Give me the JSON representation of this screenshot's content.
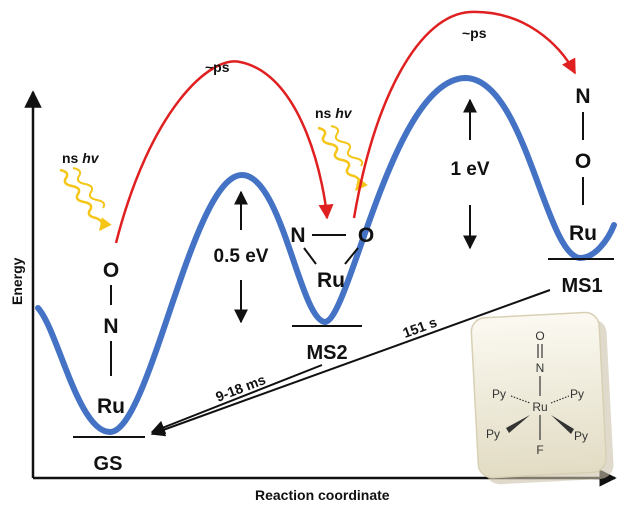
{
  "axes": {
    "y_label": "Energy",
    "x_label": "Reaction coordinate"
  },
  "states": {
    "gs": "GS",
    "ms2": "MS2",
    "ms1": "MS1"
  },
  "gs_structure": {
    "top": "O",
    "middle": "N",
    "bottom": "Ru"
  },
  "ms2_structure": {
    "left": "N",
    "right": "O",
    "bottom": "Ru"
  },
  "ms1_structure": {
    "top": "N",
    "middle": "O",
    "bottom": "Ru"
  },
  "excitation": {
    "prefix": "ns ",
    "symbol": "hv"
  },
  "timescales": {
    "fast": "~ps",
    "ms2_decay": "9-18 ms",
    "ms1_decay": "151 s"
  },
  "barriers": {
    "ms2_barrier": "0.5 eV",
    "ms1_barrier": "1 eV"
  },
  "molecule": {
    "o": "O",
    "n": "N",
    "ru": "Ru",
    "f": "F",
    "py": "Py"
  },
  "colors": {
    "curve": "#4472c4",
    "photo_arrow": "#e02020",
    "light": "#f5c518",
    "frame": "#e6dfc8"
  }
}
